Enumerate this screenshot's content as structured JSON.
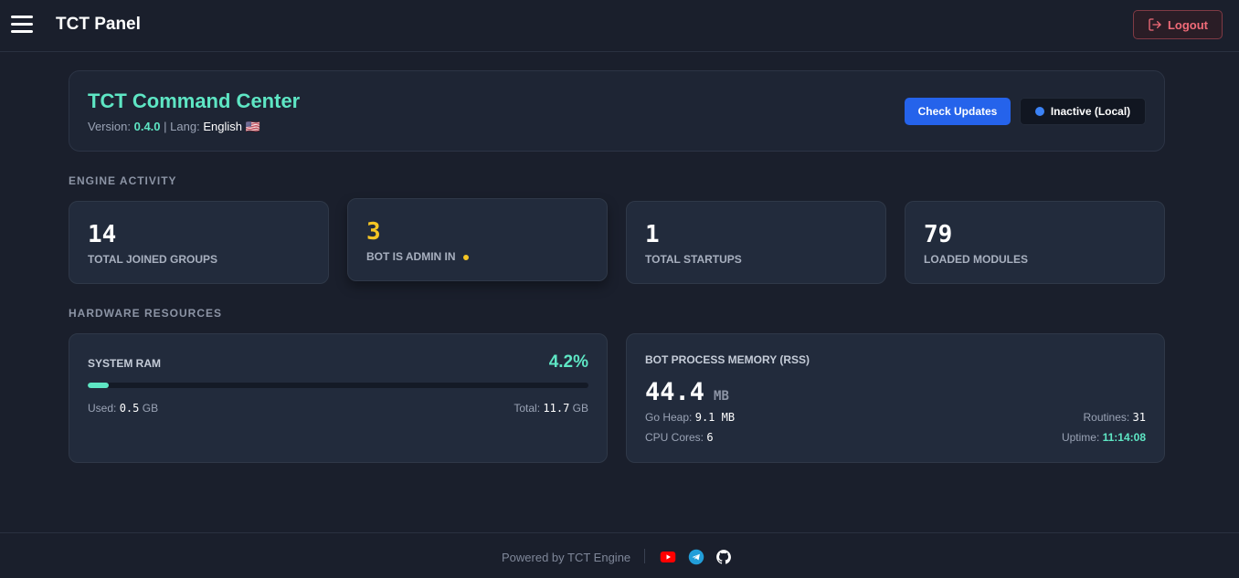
{
  "topbar": {
    "title": "TCT Panel",
    "logout_label": "Logout"
  },
  "header": {
    "title": "TCT Command Center",
    "version_label": "Version:",
    "version": "0.4.0",
    "separator": "|",
    "lang_label": "Lang:",
    "lang": "English 🇺🇸",
    "check_updates_label": "Check Updates",
    "status_label": "Inactive (Local)"
  },
  "engine": {
    "section_label": "ENGINE ACTIVITY",
    "stats": [
      {
        "value": "14",
        "label": "TOTAL JOINED GROUPS"
      },
      {
        "value": "3",
        "label": "BOT IS ADMIN IN"
      },
      {
        "value": "1",
        "label": "TOTAL STARTUPS"
      },
      {
        "value": "79",
        "label": "LOADED MODULES"
      }
    ]
  },
  "hardware": {
    "section_label": "HARDWARE RESOURCES",
    "ram": {
      "title": "SYSTEM RAM",
      "percent": "4.2%",
      "fill_fraction": 0.042,
      "used_label": "Used:",
      "used_value": "0.5",
      "used_unit": "GB",
      "total_label": "Total:",
      "total_value": "11.7",
      "total_unit": "GB"
    },
    "bot": {
      "title": "BOT PROCESS MEMORY (RSS)",
      "rss_value": "44.4",
      "rss_unit": "MB",
      "heap_label": "Go Heap:",
      "heap_value": "9.1 MB",
      "cores_label": "CPU Cores:",
      "cores_value": "6",
      "routines_label": "Routines:",
      "routines_value": "31",
      "uptime_label": "Uptime:",
      "uptime_value": "11:14:08"
    }
  },
  "footer": {
    "powered_by": "Powered by TCT Engine",
    "icons": [
      "youtube-icon",
      "telegram-icon",
      "github-icon"
    ]
  },
  "colors": {
    "accent": "#5ee6c4",
    "primary_button": "#2563eb",
    "warning": "#f4c524",
    "danger": "#f06b78",
    "status_dot": "#3b82f6"
  }
}
